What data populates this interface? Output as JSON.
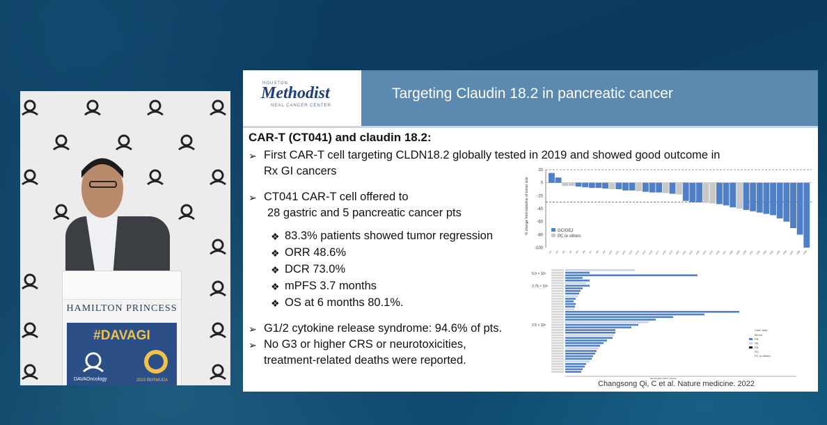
{
  "speaker": {
    "lectern_name": "HAMILTON PRINCESS",
    "hashtag": "#DAVAGI",
    "org": "DAVAOncology",
    "event": "2023 BERMUDA"
  },
  "slide": {
    "logo": {
      "top": "HOUSTON",
      "main": "Methodist",
      "bottom": "NEAL CANCER CENTER"
    },
    "title": "Targeting Claudin 18.2 in pancreatic cancer",
    "section_heading": "CAR-T (CT041) and claudin 18.2:",
    "bullets": [
      {
        "line1": "First CAR-T cell targeting CLDN18.2 globally tested in 2019 and showed good outcome in",
        "line2": "Rx GI cancers"
      },
      {
        "line1": "CT041 CAR-T cell offered to",
        "line2": "28 gastric and 5 pancreatic cancer pts"
      }
    ],
    "sub_bullets": [
      "83.3% patients showed tumor regression",
      "ORR 48.6%",
      "DCR 73.0%",
      "mPFS 3.7 months",
      "OS at 6 months 80.1%."
    ],
    "bottom_bullets": [
      {
        "line1": "G1/2 cytokine release syndrome: 94.6% of pts."
      },
      {
        "line1": "No G3 or higher CRS or neurotoxicities,",
        "line2": "treatment-related deaths were reported."
      }
    ],
    "citation": "Changsong Qi, C et al. Nature medicine. 2022",
    "waterfall": {
      "ylabel": "% change from baseline of tumor size",
      "yticks": [
        "20",
        "0",
        "-20",
        "-40",
        "-60",
        "-80",
        "-100"
      ],
      "legend": [
        "GC/GEJ",
        "PC or others"
      ],
      "colors": {
        "gc": "#4f7fc6",
        "pc": "#c8c8c8"
      }
    },
    "swimmer": {
      "labels": [
        "5.0 × 10⁸",
        "3.75 × 10⁸",
        "2.5 × 10⁸"
      ],
      "legend": [
        "Cont. resp.",
        "Re-inf.",
        "PR",
        "SD",
        "PD",
        "GC",
        "PC or others"
      ],
      "xlabel": "Months after CAR-T infusion"
    }
  },
  "chart_data": {
    "type": "bar",
    "ylim": [
      -100,
      20
    ],
    "values": [
      15,
      8,
      -5,
      -5,
      -6,
      -7,
      -8,
      -8,
      -9,
      -10,
      -10,
      -12,
      -12,
      -13,
      -14,
      -15,
      -15,
      -16,
      -17,
      -18,
      -28,
      -30,
      -30,
      -31,
      -32,
      -33,
      -35,
      -38,
      -40,
      -42,
      -44,
      -46,
      -48,
      -50,
      -55,
      -60,
      -70,
      -80,
      -100
    ],
    "groups": [
      "gc",
      "gc",
      "pc",
      "pc",
      "gc",
      "gc",
      "gc",
      "gc",
      "gc",
      "pc",
      "gc",
      "gc",
      "gc",
      "pc",
      "gc",
      "gc",
      "gc",
      "pc",
      "gc",
      "pc",
      "gc",
      "gc",
      "gc",
      "pc",
      "pc",
      "gc",
      "gc",
      "gc",
      "pc",
      "gc",
      "gc",
      "gc",
      "gc",
      "gc",
      "gc",
      "gc",
      "gc",
      "gc",
      "gc"
    ]
  }
}
